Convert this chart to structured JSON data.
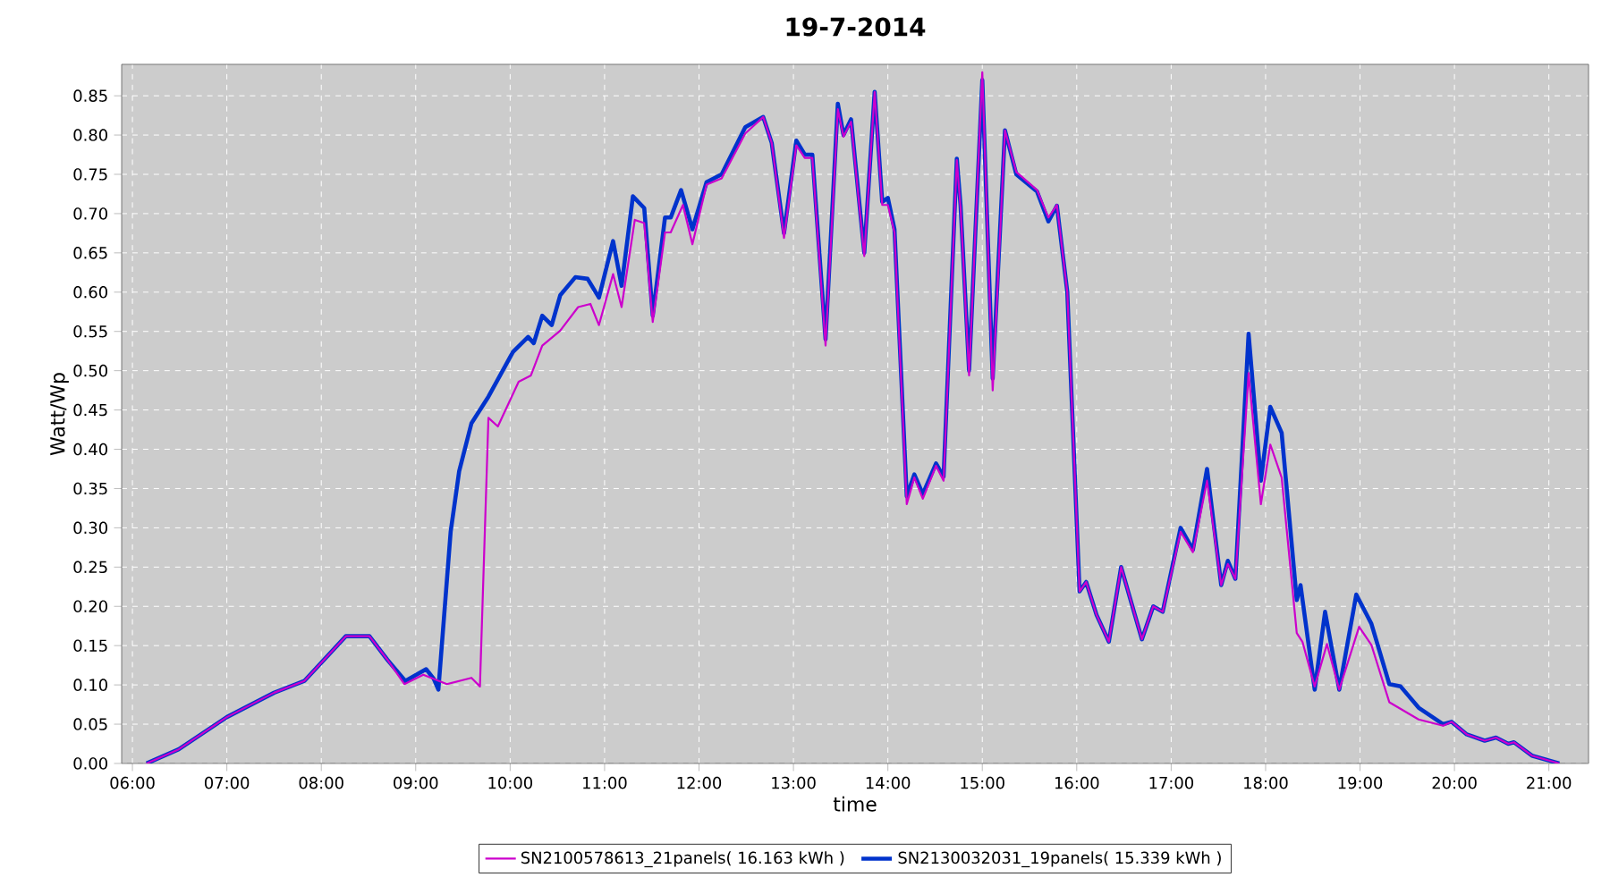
{
  "chart_data": {
    "type": "line",
    "title": "19-7-2014",
    "xlabel": "time",
    "ylabel": "Watt/Wp",
    "xlim": [
      5.886,
      21.42
    ],
    "ylim": [
      0,
      0.89
    ],
    "xticks": [
      {
        "value": 6,
        "label": "06:00"
      },
      {
        "value": 7,
        "label": "07:00"
      },
      {
        "value": 8,
        "label": "08:00"
      },
      {
        "value": 9,
        "label": "09:00"
      },
      {
        "value": 10,
        "label": "10:00"
      },
      {
        "value": 11,
        "label": "11:00"
      },
      {
        "value": 12,
        "label": "12:00"
      },
      {
        "value": 13,
        "label": "13:00"
      },
      {
        "value": 14,
        "label": "14:00"
      },
      {
        "value": 15,
        "label": "15:00"
      },
      {
        "value": 16,
        "label": "16:00"
      },
      {
        "value": 17,
        "label": "17:00"
      },
      {
        "value": 18,
        "label": "18:00"
      },
      {
        "value": 19,
        "label": "19:00"
      },
      {
        "value": 20,
        "label": "20:00"
      },
      {
        "value": 21,
        "label": "21:00"
      }
    ],
    "yticks": [
      {
        "value": 0,
        "label": "0.00"
      },
      {
        "value": 0.05,
        "label": "0.05"
      },
      {
        "value": 0.1,
        "label": "0.10"
      },
      {
        "value": 0.15,
        "label": "0.15"
      },
      {
        "value": 0.2,
        "label": "0.20"
      },
      {
        "value": 0.25,
        "label": "0.25"
      },
      {
        "value": 0.3,
        "label": "0.30"
      },
      {
        "value": 0.35,
        "label": "0.35"
      },
      {
        "value": 0.4,
        "label": "0.40"
      },
      {
        "value": 0.45,
        "label": "0.45"
      },
      {
        "value": 0.5,
        "label": "0.50"
      },
      {
        "value": 0.55,
        "label": "0.55"
      },
      {
        "value": 0.6,
        "label": "0.60"
      },
      {
        "value": 0.65,
        "label": "0.65"
      },
      {
        "value": 0.7,
        "label": "0.70"
      },
      {
        "value": 0.75,
        "label": "0.75"
      },
      {
        "value": 0.8,
        "label": "0.80"
      },
      {
        "value": 0.85,
        "label": "0.85"
      }
    ],
    "grid": true,
    "legend": "bottom",
    "marker": "none",
    "line_style": "solid",
    "series": [
      {
        "name": "SN2100578613_21panels( 16.163 kWh )",
        "color": "#cc00cc",
        "x": [
          6.15,
          6.49,
          7.0,
          7.5,
          7.82,
          8.26,
          8.51,
          8.7,
          8.88,
          9.08,
          9.33,
          9.59,
          9.68,
          9.77,
          9.87,
          10.09,
          10.22,
          10.34,
          10.53,
          10.72,
          10.85,
          10.94,
          11.09,
          11.18,
          11.32,
          11.42,
          11.51,
          11.64,
          11.7,
          11.83,
          11.93,
          12.08,
          12.24,
          12.49,
          12.68,
          12.77,
          12.9,
          13.03,
          13.12,
          13.2,
          13.34,
          13.47,
          13.53,
          13.61,
          13.75,
          13.86,
          13.94,
          14.0,
          14.07,
          14.2,
          14.28,
          14.37,
          14.51,
          14.59,
          14.73,
          14.77,
          14.86,
          15.0,
          15.11,
          15.24,
          15.36,
          15.58,
          15.7,
          15.79,
          15.9,
          16.03,
          16.1,
          16.21,
          16.34,
          16.47,
          16.69,
          16.81,
          16.91,
          17.1,
          17.23,
          17.38,
          17.53,
          17.6,
          17.68,
          17.82,
          17.95,
          18.05,
          18.17,
          18.33,
          18.39,
          18.52,
          18.65,
          18.78,
          18.99,
          19.12,
          19.31,
          19.62,
          19.88,
          19.97,
          20.13,
          20.32,
          20.44,
          20.57,
          20.63,
          20.82,
          21.11
        ],
        "values": [
          0,
          0.018,
          0.059,
          0.09,
          0.105,
          0.162,
          0.162,
          0.132,
          0.101,
          0.113,
          0.101,
          0.109,
          0.098,
          0.44,
          0.429,
          0.486,
          0.494,
          0.532,
          0.551,
          0.581,
          0.585,
          0.558,
          0.623,
          0.581,
          0.692,
          0.688,
          0.562,
          0.676,
          0.676,
          0.711,
          0.661,
          0.737,
          0.745,
          0.802,
          0.823,
          0.79,
          0.669,
          0.787,
          0.771,
          0.771,
          0.532,
          0.833,
          0.798,
          0.817,
          0.646,
          0.855,
          0.711,
          0.711,
          0.676,
          0.33,
          0.364,
          0.337,
          0.379,
          0.36,
          0.768,
          0.707,
          0.494,
          0.88,
          0.475,
          0.806,
          0.753,
          0.73,
          0.695,
          0.711,
          0.6,
          0.219,
          0.231,
          0.189,
          0.155,
          0.25,
          0.158,
          0.2,
          0.193,
          0.295,
          0.269,
          0.36,
          0.227,
          0.254,
          0.235,
          0.497,
          0.33,
          0.406,
          0.364,
          0.166,
          0.155,
          0.098,
          0.152,
          0.094,
          0.174,
          0.151,
          0.078,
          0.056,
          0.048,
          0.053,
          0.037,
          0.029,
          0.033,
          0.025,
          0.027,
          0.01,
          0
        ]
      },
      {
        "name": "SN2130032031_19panels( 15.339 kWh )",
        "color": "#0033cc",
        "x": [
          6.15,
          6.49,
          7.0,
          7.5,
          7.82,
          8.26,
          8.51,
          8.7,
          8.89,
          9.11,
          9.19,
          9.24,
          9.37,
          9.46,
          9.59,
          9.77,
          10.03,
          10.19,
          10.25,
          10.34,
          10.44,
          10.53,
          10.69,
          10.82,
          10.94,
          11.09,
          11.18,
          11.3,
          11.42,
          11.51,
          11.64,
          11.7,
          11.81,
          11.93,
          12.08,
          12.24,
          12.49,
          12.68,
          12.77,
          12.9,
          13.03,
          13.12,
          13.2,
          13.34,
          13.47,
          13.53,
          13.61,
          13.75,
          13.86,
          13.94,
          14.0,
          14.07,
          14.2,
          14.28,
          14.37,
          14.51,
          14.59,
          14.73,
          14.77,
          14.86,
          15.0,
          15.11,
          15.24,
          15.36,
          15.58,
          15.7,
          15.79,
          15.9,
          16.03,
          16.1,
          16.21,
          16.34,
          16.47,
          16.69,
          16.81,
          16.91,
          17.1,
          17.23,
          17.38,
          17.53,
          17.6,
          17.68,
          17.82,
          17.95,
          18.05,
          18.17,
          18.33,
          18.37,
          18.52,
          18.63,
          18.78,
          18.96,
          19.12,
          19.31,
          19.43,
          19.62,
          19.88,
          19.97,
          20.13,
          20.32,
          20.44,
          20.57,
          20.63,
          20.82,
          21.11
        ],
        "values": [
          0,
          0.018,
          0.059,
          0.09,
          0.105,
          0.162,
          0.162,
          0.132,
          0.105,
          0.12,
          0.108,
          0.094,
          0.295,
          0.372,
          0.433,
          0.467,
          0.524,
          0.543,
          0.535,
          0.57,
          0.558,
          0.596,
          0.619,
          0.617,
          0.593,
          0.665,
          0.608,
          0.722,
          0.707,
          0.57,
          0.695,
          0.695,
          0.73,
          0.68,
          0.74,
          0.75,
          0.81,
          0.823,
          0.79,
          0.675,
          0.793,
          0.775,
          0.775,
          0.54,
          0.84,
          0.8,
          0.82,
          0.65,
          0.855,
          0.715,
          0.72,
          0.68,
          0.34,
          0.368,
          0.343,
          0.382,
          0.365,
          0.77,
          0.71,
          0.5,
          0.87,
          0.49,
          0.806,
          0.75,
          0.728,
          0.69,
          0.71,
          0.6,
          0.219,
          0.231,
          0.189,
          0.155,
          0.25,
          0.158,
          0.2,
          0.193,
          0.3,
          0.272,
          0.375,
          0.227,
          0.258,
          0.235,
          0.547,
          0.36,
          0.454,
          0.421,
          0.208,
          0.227,
          0.094,
          0.193,
          0.094,
          0.215,
          0.178,
          0.101,
          0.098,
          0.071,
          0.05,
          0.053,
          0.037,
          0.029,
          0.033,
          0.025,
          0.027,
          0.01,
          0
        ]
      }
    ]
  }
}
